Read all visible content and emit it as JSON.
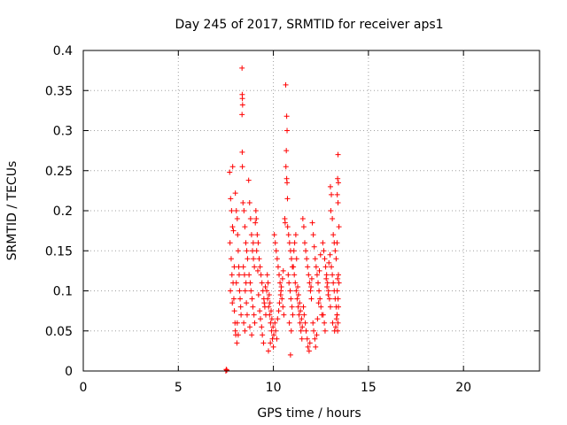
{
  "chart_data": {
    "type": "scatter",
    "title": "Day 245 of 2017, SRMTID for receiver aps1",
    "xlabel": "GPS time / hours",
    "ylabel": "SRMTID / TECUs",
    "xlim": [
      0,
      24
    ],
    "ylim": [
      0,
      0.4
    ],
    "x_ticks": [
      0,
      5,
      10,
      15,
      20
    ],
    "x_tick_labels": [
      "0",
      "5",
      "10",
      "15",
      "20"
    ],
    "y_ticks": [
      0,
      0.05,
      0.1,
      0.15,
      0.2,
      0.25,
      0.3,
      0.35,
      0.4
    ],
    "y_tick_labels": [
      "0",
      "0.05",
      "0.1",
      "0.15",
      "0.2",
      "0.25",
      "0.3",
      "0.35",
      "0.4"
    ],
    "grid": true,
    "marker": "+",
    "color": "#ff0000",
    "series": [
      {
        "name": "SRMTID",
        "points": [
          [
            7.5,
            0.0
          ],
          [
            7.52,
            0.002
          ],
          [
            7.55,
            0.001
          ],
          [
            7.7,
            0.248
          ],
          [
            7.75,
            0.215
          ],
          [
            7.8,
            0.2
          ],
          [
            7.85,
            0.18
          ],
          [
            7.9,
            0.175
          ],
          [
            7.72,
            0.16
          ],
          [
            7.78,
            0.14
          ],
          [
            7.82,
            0.12
          ],
          [
            7.88,
            0.11
          ],
          [
            7.92,
            0.09
          ],
          [
            7.95,
            0.075
          ],
          [
            7.98,
            0.06
          ],
          [
            8.0,
            0.05
          ],
          [
            7.74,
            0.1
          ],
          [
            7.84,
            0.085
          ],
          [
            7.94,
            0.13
          ],
          [
            8.02,
            0.045
          ],
          [
            7.86,
            0.255
          ],
          [
            8.0,
            0.222
          ],
          [
            8.05,
            0.2
          ],
          [
            8.1,
            0.19
          ],
          [
            8.12,
            0.17
          ],
          [
            8.15,
            0.15
          ],
          [
            8.18,
            0.13
          ],
          [
            8.2,
            0.12
          ],
          [
            8.22,
            0.1
          ],
          [
            8.25,
            0.09
          ],
          [
            8.28,
            0.08
          ],
          [
            8.3,
            0.07
          ],
          [
            8.1,
            0.06
          ],
          [
            8.15,
            0.045
          ],
          [
            8.05,
            0.11
          ],
          [
            8.08,
            0.035
          ],
          [
            8.35,
            0.378
          ],
          [
            8.36,
            0.345
          ],
          [
            8.37,
            0.34
          ],
          [
            8.38,
            0.332
          ],
          [
            8.35,
            0.32
          ],
          [
            8.36,
            0.273
          ],
          [
            8.37,
            0.255
          ],
          [
            8.4,
            0.21
          ],
          [
            8.45,
            0.2
          ],
          [
            8.5,
            0.18
          ],
          [
            8.55,
            0.16
          ],
          [
            8.6,
            0.15
          ],
          [
            8.42,
            0.13
          ],
          [
            8.48,
            0.12
          ],
          [
            8.52,
            0.1
          ],
          [
            8.58,
            0.085
          ],
          [
            8.62,
            0.07
          ],
          [
            8.44,
            0.06
          ],
          [
            8.5,
            0.05
          ],
          [
            8.56,
            0.11
          ],
          [
            8.64,
            0.14
          ],
          [
            8.7,
            0.238
          ],
          [
            8.75,
            0.21
          ],
          [
            8.8,
            0.19
          ],
          [
            8.85,
            0.17
          ],
          [
            8.9,
            0.15
          ],
          [
            8.95,
            0.14
          ],
          [
            9.0,
            0.13
          ],
          [
            8.72,
            0.12
          ],
          [
            8.78,
            0.11
          ],
          [
            8.82,
            0.1
          ],
          [
            8.88,
            0.09
          ],
          [
            8.92,
            0.08
          ],
          [
            8.98,
            0.07
          ],
          [
            9.02,
            0.06
          ],
          [
            8.76,
            0.055
          ],
          [
            8.86,
            0.045
          ],
          [
            8.94,
            0.16
          ],
          [
            9.05,
            0.185
          ],
          [
            9.08,
            0.2
          ],
          [
            9.1,
            0.19
          ],
          [
            9.15,
            0.17
          ],
          [
            9.2,
            0.16
          ],
          [
            9.25,
            0.14
          ],
          [
            9.3,
            0.13
          ],
          [
            9.35,
            0.12
          ],
          [
            9.4,
            0.11
          ],
          [
            9.45,
            0.1
          ],
          [
            9.5,
            0.09
          ],
          [
            9.55,
            0.08
          ],
          [
            9.6,
            0.07
          ],
          [
            9.12,
            0.15
          ],
          [
            9.18,
            0.125
          ],
          [
            9.22,
            0.095
          ],
          [
            9.28,
            0.075
          ],
          [
            9.32,
            0.065
          ],
          [
            9.38,
            0.055
          ],
          [
            9.42,
            0.045
          ],
          [
            9.48,
            0.035
          ],
          [
            9.52,
            0.085
          ],
          [
            9.58,
            0.105
          ],
          [
            9.65,
            0.1
          ],
          [
            9.7,
            0.09
          ],
          [
            9.75,
            0.08
          ],
          [
            9.8,
            0.07
          ],
          [
            9.85,
            0.06
          ],
          [
            9.9,
            0.05
          ],
          [
            9.95,
            0.04
          ],
          [
            10.0,
            0.03
          ],
          [
            9.68,
            0.12
          ],
          [
            9.72,
            0.11
          ],
          [
            9.78,
            0.095
          ],
          [
            9.82,
            0.085
          ],
          [
            9.88,
            0.075
          ],
          [
            9.92,
            0.065
          ],
          [
            9.98,
            0.055
          ],
          [
            10.02,
            0.045
          ],
          [
            9.74,
            0.025
          ],
          [
            9.84,
            0.035
          ],
          [
            10.05,
            0.17
          ],
          [
            10.1,
            0.16
          ],
          [
            10.15,
            0.15
          ],
          [
            10.2,
            0.14
          ],
          [
            10.25,
            0.13
          ],
          [
            10.3,
            0.12
          ],
          [
            10.35,
            0.11
          ],
          [
            10.4,
            0.1
          ],
          [
            10.45,
            0.09
          ],
          [
            10.5,
            0.08
          ],
          [
            10.55,
            0.07
          ],
          [
            10.08,
            0.06
          ],
          [
            10.12,
            0.05
          ],
          [
            10.18,
            0.04
          ],
          [
            10.22,
            0.065
          ],
          [
            10.28,
            0.075
          ],
          [
            10.32,
            0.085
          ],
          [
            10.38,
            0.095
          ],
          [
            10.42,
            0.105
          ],
          [
            10.48,
            0.115
          ],
          [
            10.52,
            0.125
          ],
          [
            10.65,
            0.357
          ],
          [
            10.7,
            0.318
          ],
          [
            10.72,
            0.3
          ],
          [
            10.68,
            0.275
          ],
          [
            10.66,
            0.255
          ],
          [
            10.7,
            0.24
          ],
          [
            10.72,
            0.235
          ],
          [
            10.74,
            0.215
          ],
          [
            10.6,
            0.19
          ],
          [
            10.62,
            0.185
          ],
          [
            10.75,
            0.18
          ],
          [
            10.8,
            0.17
          ],
          [
            10.85,
            0.16
          ],
          [
            10.9,
            0.15
          ],
          [
            10.95,
            0.14
          ],
          [
            11.0,
            0.13
          ],
          [
            10.78,
            0.12
          ],
          [
            10.82,
            0.11
          ],
          [
            10.88,
            0.1
          ],
          [
            10.92,
            0.09
          ],
          [
            10.98,
            0.08
          ],
          [
            11.02,
            0.07
          ],
          [
            10.84,
            0.06
          ],
          [
            10.94,
            0.05
          ],
          [
            10.9,
            0.02
          ],
          [
            11.05,
            0.13
          ],
          [
            11.1,
            0.12
          ],
          [
            11.15,
            0.11
          ],
          [
            11.2,
            0.1
          ],
          [
            11.25,
            0.09
          ],
          [
            11.3,
            0.08
          ],
          [
            11.35,
            0.07
          ],
          [
            11.4,
            0.06
          ],
          [
            11.45,
            0.05
          ],
          [
            11.5,
            0.04
          ],
          [
            11.08,
            0.15
          ],
          [
            11.12,
            0.16
          ],
          [
            11.18,
            0.17
          ],
          [
            11.22,
            0.14
          ],
          [
            11.28,
            0.105
          ],
          [
            11.32,
            0.095
          ],
          [
            11.38,
            0.085
          ],
          [
            11.42,
            0.075
          ],
          [
            11.48,
            0.065
          ],
          [
            11.52,
            0.055
          ],
          [
            11.55,
            0.19
          ],
          [
            11.6,
            0.18
          ],
          [
            11.65,
            0.16
          ],
          [
            11.7,
            0.15
          ],
          [
            11.75,
            0.14
          ],
          [
            11.8,
            0.13
          ],
          [
            11.85,
            0.12
          ],
          [
            11.9,
            0.11
          ],
          [
            11.95,
            0.1
          ],
          [
            12.0,
            0.09
          ],
          [
            11.58,
            0.08
          ],
          [
            11.62,
            0.07
          ],
          [
            11.68,
            0.06
          ],
          [
            11.72,
            0.05
          ],
          [
            11.78,
            0.04
          ],
          [
            11.82,
            0.03
          ],
          [
            11.88,
            0.025
          ],
          [
            11.92,
            0.035
          ],
          [
            11.98,
            0.105
          ],
          [
            12.02,
            0.115
          ],
          [
            12.05,
            0.185
          ],
          [
            12.1,
            0.17
          ],
          [
            12.15,
            0.155
          ],
          [
            12.2,
            0.14
          ],
          [
            12.25,
            0.13
          ],
          [
            12.3,
            0.12
          ],
          [
            12.35,
            0.11
          ],
          [
            12.4,
            0.1
          ],
          [
            12.45,
            0.09
          ],
          [
            12.5,
            0.08
          ],
          [
            12.55,
            0.07
          ],
          [
            12.08,
            0.06
          ],
          [
            12.12,
            0.05
          ],
          [
            12.18,
            0.04
          ],
          [
            12.22,
            0.03
          ],
          [
            12.28,
            0.045
          ],
          [
            12.32,
            0.065
          ],
          [
            12.38,
            0.085
          ],
          [
            12.42,
            0.125
          ],
          [
            12.48,
            0.145
          ],
          [
            12.6,
            0.16
          ],
          [
            12.65,
            0.15
          ],
          [
            12.7,
            0.14
          ],
          [
            12.75,
            0.13
          ],
          [
            12.8,
            0.12
          ],
          [
            12.85,
            0.11
          ],
          [
            12.9,
            0.1
          ],
          [
            12.95,
            0.09
          ],
          [
            13.0,
            0.08
          ],
          [
            12.62,
            0.07
          ],
          [
            12.68,
            0.06
          ],
          [
            12.72,
            0.05
          ],
          [
            12.78,
            0.115
          ],
          [
            12.82,
            0.105
          ],
          [
            12.88,
            0.095
          ],
          [
            12.92,
            0.135
          ],
          [
            12.98,
            0.145
          ],
          [
            13.0,
            0.23
          ],
          [
            13.05,
            0.22
          ],
          [
            13.02,
            0.2
          ],
          [
            13.1,
            0.19
          ],
          [
            13.15,
            0.17
          ],
          [
            13.2,
            0.16
          ],
          [
            13.25,
            0.15
          ],
          [
            13.3,
            0.14
          ],
          [
            13.05,
            0.13
          ],
          [
            13.1,
            0.12
          ],
          [
            13.15,
            0.11
          ],
          [
            13.2,
            0.1
          ],
          [
            13.25,
            0.09
          ],
          [
            13.3,
            0.08
          ],
          [
            13.35,
            0.07
          ],
          [
            13.12,
            0.06
          ],
          [
            13.22,
            0.05
          ],
          [
            13.28,
            0.055
          ],
          [
            13.32,
            0.065
          ],
          [
            13.4,
            0.27
          ],
          [
            13.38,
            0.24
          ],
          [
            13.42,
            0.235
          ],
          [
            13.36,
            0.22
          ],
          [
            13.4,
            0.21
          ],
          [
            13.45,
            0.18
          ],
          [
            13.35,
            0.16
          ],
          [
            13.42,
            0.12
          ],
          [
            13.38,
            0.115
          ],
          [
            13.45,
            0.11
          ],
          [
            13.36,
            0.1
          ],
          [
            13.4,
            0.09
          ],
          [
            13.42,
            0.08
          ],
          [
            13.35,
            0.07
          ],
          [
            13.4,
            0.06
          ],
          [
            13.38,
            0.05
          ]
        ]
      }
    ]
  }
}
